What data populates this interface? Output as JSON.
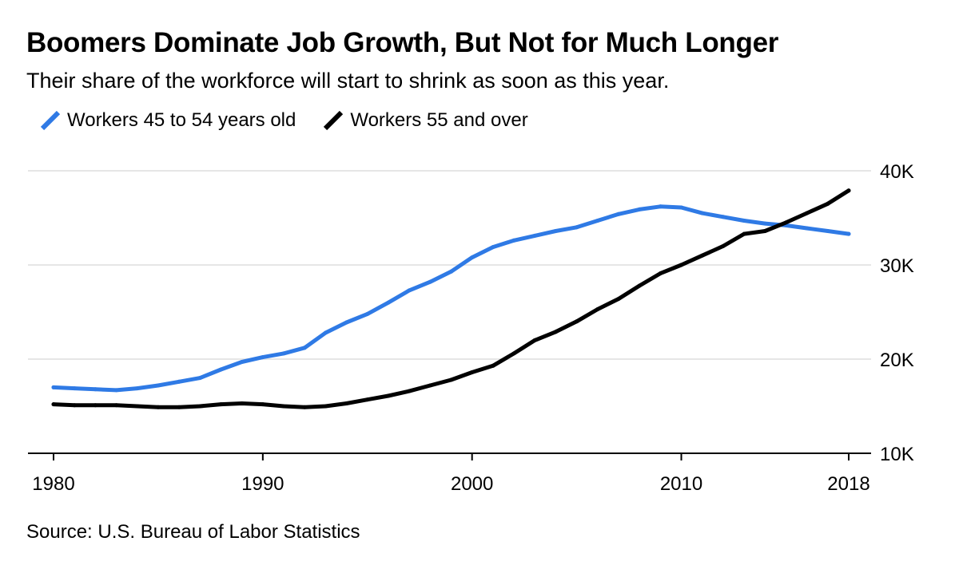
{
  "chart_data": {
    "type": "line",
    "title": "Boomers Dominate Job Growth, But Not for Much Longer",
    "subtitle": "Their share of the workforce will start to shrink as soon as this year.",
    "source": "Source: U.S. Bureau of Labor Statistics",
    "xlim": [
      1980,
      2018
    ],
    "ylim": [
      10000,
      40000
    ],
    "x_ticks": [
      1980,
      1990,
      2000,
      2010,
      2018
    ],
    "y_ticks": [
      {
        "value": 40000,
        "label": "40K"
      },
      {
        "value": 30000,
        "label": "30K"
      },
      {
        "value": 20000,
        "label": "20K"
      },
      {
        "value": 10000,
        "label": "10K"
      }
    ],
    "grid": true,
    "legend_position": "top-left",
    "series": [
      {
        "name": "Workers 45 to 54 years old",
        "color": "#2f7ae5",
        "x": [
          1980,
          1981,
          1982,
          1983,
          1984,
          1985,
          1986,
          1987,
          1988,
          1989,
          1990,
          1991,
          1992,
          1993,
          1994,
          1995,
          1996,
          1997,
          1998,
          1999,
          2000,
          2001,
          2002,
          2003,
          2004,
          2005,
          2006,
          2007,
          2008,
          2009,
          2010,
          2011,
          2012,
          2013,
          2014,
          2015,
          2016,
          2017,
          2018
        ],
        "values": [
          17000,
          16900,
          16800,
          16700,
          16900,
          17200,
          17600,
          18000,
          18900,
          19700,
          20200,
          20600,
          21200,
          22800,
          23900,
          24800,
          26000,
          27300,
          28200,
          29300,
          30800,
          31900,
          32600,
          33100,
          33600,
          34000,
          34700,
          35400,
          35900,
          36200,
          36100,
          35500,
          35100,
          34700,
          34400,
          34200,
          33900,
          33600,
          33300
        ]
      },
      {
        "name": "Workers 55 and over",
        "color": "#000000",
        "x": [
          1980,
          1981,
          1982,
          1983,
          1984,
          1985,
          1986,
          1987,
          1988,
          1989,
          1990,
          1991,
          1992,
          1993,
          1994,
          1995,
          1996,
          1997,
          1998,
          1999,
          2000,
          2001,
          2002,
          2003,
          2004,
          2005,
          2006,
          2007,
          2008,
          2009,
          2010,
          2011,
          2012,
          2013,
          2014,
          2015,
          2016,
          2017,
          2018
        ],
        "values": [
          15200,
          15100,
          15100,
          15100,
          15000,
          14900,
          14900,
          15000,
          15200,
          15300,
          15200,
          15000,
          14900,
          15000,
          15300,
          15700,
          16100,
          16600,
          17200,
          17800,
          18600,
          19300,
          20600,
          22000,
          22900,
          24000,
          25300,
          26400,
          27800,
          29100,
          30000,
          31000,
          32000,
          33300,
          33600,
          34500,
          35500,
          36500,
          37900
        ]
      }
    ]
  }
}
